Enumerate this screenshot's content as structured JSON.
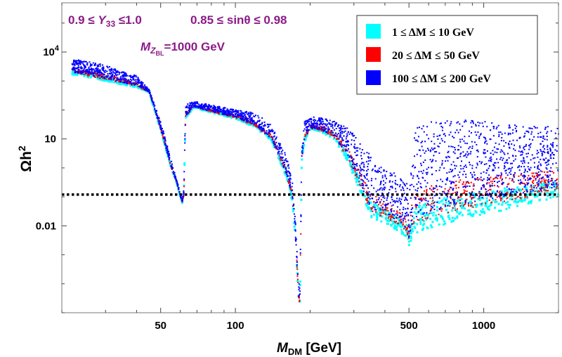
{
  "chart_data": {
    "type": "scatter",
    "title": "",
    "xlabel_main": "M",
    "xlabel_sub": "DM",
    "xlabel_unit": " [GeV]",
    "ylabel_main": "Ωh",
    "ylabel_sup": "2",
    "xscale": "log",
    "yscale": "log",
    "xlim": [
      20,
      2000
    ],
    "ylim": [
      1e-05,
      500000
    ],
    "x_ticks": [
      {
        "value": 50,
        "label": "50"
      },
      {
        "value": 100,
        "label": "100"
      },
      {
        "value": 500,
        "label": "500"
      },
      {
        "value": 1000,
        "label": "1000"
      }
    ],
    "y_ticks": [
      {
        "value": 0.01,
        "label": "0.01"
      },
      {
        "value": 10,
        "label": "10"
      },
      {
        "value": 10000,
        "label": "10",
        "sup": "4"
      }
    ],
    "reference_line": {
      "y": 0.12,
      "style": "dotted",
      "color": "#000000"
    },
    "annotations": {
      "line1_left": "0.9 ≤ ",
      "line1_var": "Y",
      "line1_sub": "33",
      "line1_right": " ≤1.0",
      "line1_sin": "0.85 ≤ sinθ ≤ 0.98",
      "line2_var": "M",
      "line2_sub": "Z",
      "line2_subsub": "BL",
      "line2_value": "=1000 GeV"
    },
    "legend_position": "top-right",
    "series": [
      {
        "name": "1 ≤ ΔM ≤ 10 GeV",
        "color": "#00FFFF"
      },
      {
        "name": "20 ≤ ΔM ≤ 50 GeV",
        "color": "#FF0000"
      },
      {
        "name": "100 ≤ ΔM ≤ 200 GeV",
        "color": "#0000FF"
      }
    ],
    "envelope": {
      "x": [
        20,
        30,
        40,
        45,
        50,
        55,
        58,
        61,
        62,
        63,
        68,
        80,
        100,
        120,
        140,
        160,
        170,
        175,
        180,
        182,
        185,
        190,
        200,
        220,
        250,
        280,
        300,
        330,
        350,
        380,
        420,
        460,
        490,
        500,
        520,
        600,
        800,
        1000,
        1500,
        2000
      ],
      "upper": [
        7000,
        3500,
        1500,
        500,
        40,
        2,
        0.4,
        0.08,
        0.2,
        150,
        200,
        150,
        100,
        80,
        30,
        3,
        0.3,
        0.01,
        0.0001,
        0.0001,
        5,
        40,
        60,
        55,
        40,
        25,
        15,
        4,
        3,
        1.2,
        0.8,
        0.6,
        0.3,
        0.1,
        20,
        50,
        50,
        40,
        30,
        25
      ],
      "lower": [
        2000,
        1000,
        600,
        400,
        20,
        1,
        0.3,
        0.06,
        0.1,
        50,
        120,
        80,
        50,
        25,
        8,
        0.5,
        0.06,
        0.002,
        2e-05,
        2e-05,
        1.5,
        8,
        20,
        18,
        10,
        2,
        0.5,
        0.08,
        0.02,
        0.015,
        0.01,
        0.006,
        0.004,
        0.002,
        0.005,
        0.008,
        0.015,
        0.025,
        0.05,
        0.1
      ]
    }
  }
}
